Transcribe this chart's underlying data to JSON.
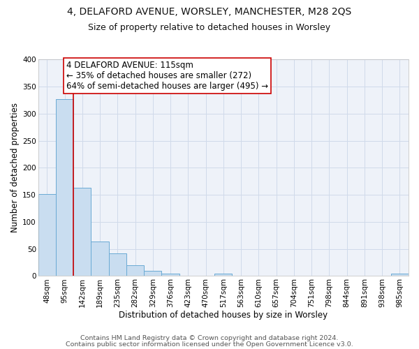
{
  "title": "4, DELAFORD AVENUE, WORSLEY, MANCHESTER, M28 2QS",
  "subtitle": "Size of property relative to detached houses in Worsley",
  "xlabel": "Distribution of detached houses by size in Worsley",
  "ylabel": "Number of detached properties",
  "bin_labels": [
    "48sqm",
    "95sqm",
    "142sqm",
    "189sqm",
    "235sqm",
    "282sqm",
    "329sqm",
    "376sqm",
    "423sqm",
    "470sqm",
    "517sqm",
    "563sqm",
    "610sqm",
    "657sqm",
    "704sqm",
    "751sqm",
    "798sqm",
    "844sqm",
    "891sqm",
    "938sqm",
    "985sqm"
  ],
  "bin_values": [
    151,
    327,
    163,
    64,
    42,
    20,
    9,
    5,
    0,
    0,
    5,
    0,
    0,
    0,
    0,
    0,
    0,
    0,
    0,
    0,
    5
  ],
  "bar_color": "#c9ddf0",
  "bar_edge_color": "#6aaad4",
  "bar_edge_width": 0.7,
  "vline_x_index": 1,
  "vline_color": "#cc0000",
  "annotation_line1": "4 DELAFORD AVENUE: 115sqm",
  "annotation_line2": "← 35% of detached houses are smaller (272)",
  "annotation_line3": "64% of semi-detached houses are larger (495) →",
  "annotation_box_color": "#ffffff",
  "annotation_box_edge": "#cc0000",
  "annotation_fontsize": 8.5,
  "ylim": [
    0,
    400
  ],
  "yticks": [
    0,
    50,
    100,
    150,
    200,
    250,
    300,
    350,
    400
  ],
  "grid_color": "#d0daea",
  "bg_color": "#eef2f9",
  "footer1": "Contains HM Land Registry data © Crown copyright and database right 2024.",
  "footer2": "Contains public sector information licensed under the Open Government Licence v3.0.",
  "title_fontsize": 10,
  "subtitle_fontsize": 9,
  "xlabel_fontsize": 8.5,
  "ylabel_fontsize": 8.5,
  "tick_fontsize": 7.5,
  "footer_fontsize": 6.8
}
